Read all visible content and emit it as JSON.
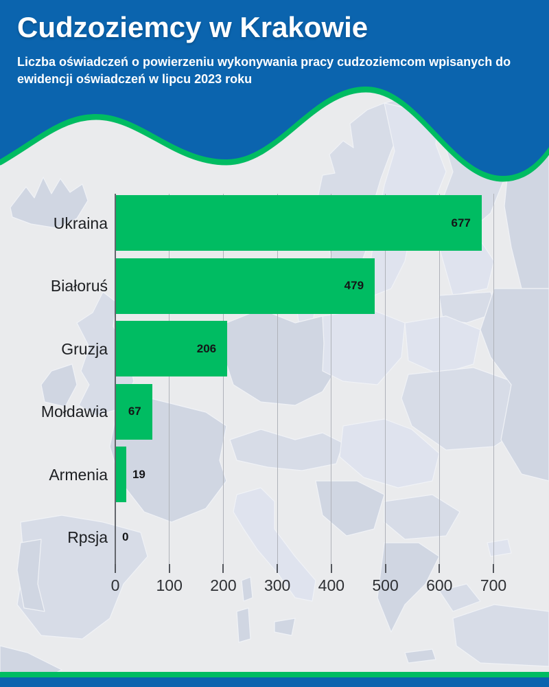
{
  "header": {
    "title": "Cudzoziemcy w Krakowie",
    "subtitle": "Liczba oświadczeń o powierzeniu wykonywania pracy cudzoziemcom wpisanych do ewidencji oświadczeń w lipcu 2023 roku",
    "subtitle_lines": [
      "Liczba oświadczeń o powierzeniu wykonywania pracy cudzoziemcom wpisanych do",
      "ewidencji oświadczeń w lipcu 2023 roku"
    ]
  },
  "colors": {
    "header_blue": "#0B64AE",
    "accent_green": "#00BC62",
    "background": "#EAEBED",
    "map_land_light": "#DFE3EE",
    "map_land_mid": "#D7DCE7",
    "map_land_dark": "#D0D6E2",
    "map_border": "#F0F2F6",
    "grid": "#AFB2B9",
    "axis": "#63666C",
    "tick": "#53565C",
    "text_dark": "#1D1F22",
    "value_label": "#141517",
    "text_white": "#FFFFFF"
  },
  "chart_data": {
    "type": "bar",
    "orientation": "horizontal",
    "title": "Cudzoziemcy w Krakowie",
    "subtitle": "Liczba oświadczeń o powierzeniu wykonywania pracy cudzoziemcom wpisanych do ewidencji oświadczeń w lipcu 2023 roku",
    "categories": [
      "Ukraina",
      "Białoruś",
      "Gruzja",
      "Mołdawia",
      "Armenia",
      "Rpsja"
    ],
    "values": [
      677,
      479,
      206,
      67,
      19,
      0
    ],
    "value_labels": [
      "677",
      "479",
      "206",
      "67",
      "19",
      "0"
    ],
    "xticks": [
      0,
      100,
      200,
      300,
      400,
      500,
      600,
      700
    ],
    "xlim": [
      0,
      700
    ],
    "xlabel": "",
    "ylabel": "",
    "grid": true,
    "legend": false
  }
}
